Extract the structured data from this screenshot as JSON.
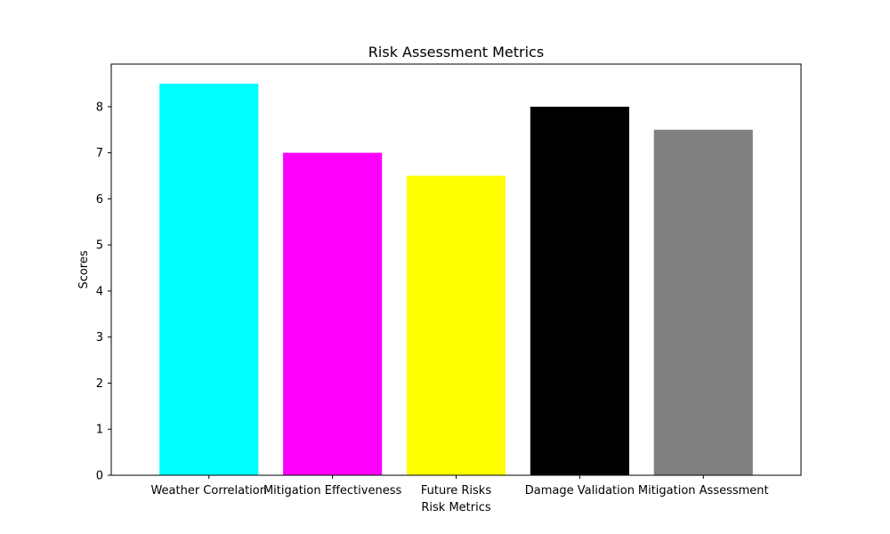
{
  "chart_data": {
    "type": "bar",
    "title": "Risk Assessment Metrics",
    "xlabel": "Risk Metrics",
    "ylabel": "Scores",
    "categories": [
      "Weather Correlation",
      "Mitigation Effectiveness",
      "Future Risks",
      "Damage Validation",
      "Mitigation Assessment"
    ],
    "values": [
      8.5,
      7.0,
      6.5,
      8.0,
      7.5
    ],
    "colors": [
      "#00ffff",
      "#ff00ff",
      "#ffff00",
      "#000000",
      "#808080"
    ],
    "ylim": [
      0,
      8.925
    ],
    "yticks": [
      "0",
      "1",
      "2",
      "3",
      "4",
      "5",
      "6",
      "7",
      "8"
    ],
    "grid": false,
    "legend": false
  }
}
